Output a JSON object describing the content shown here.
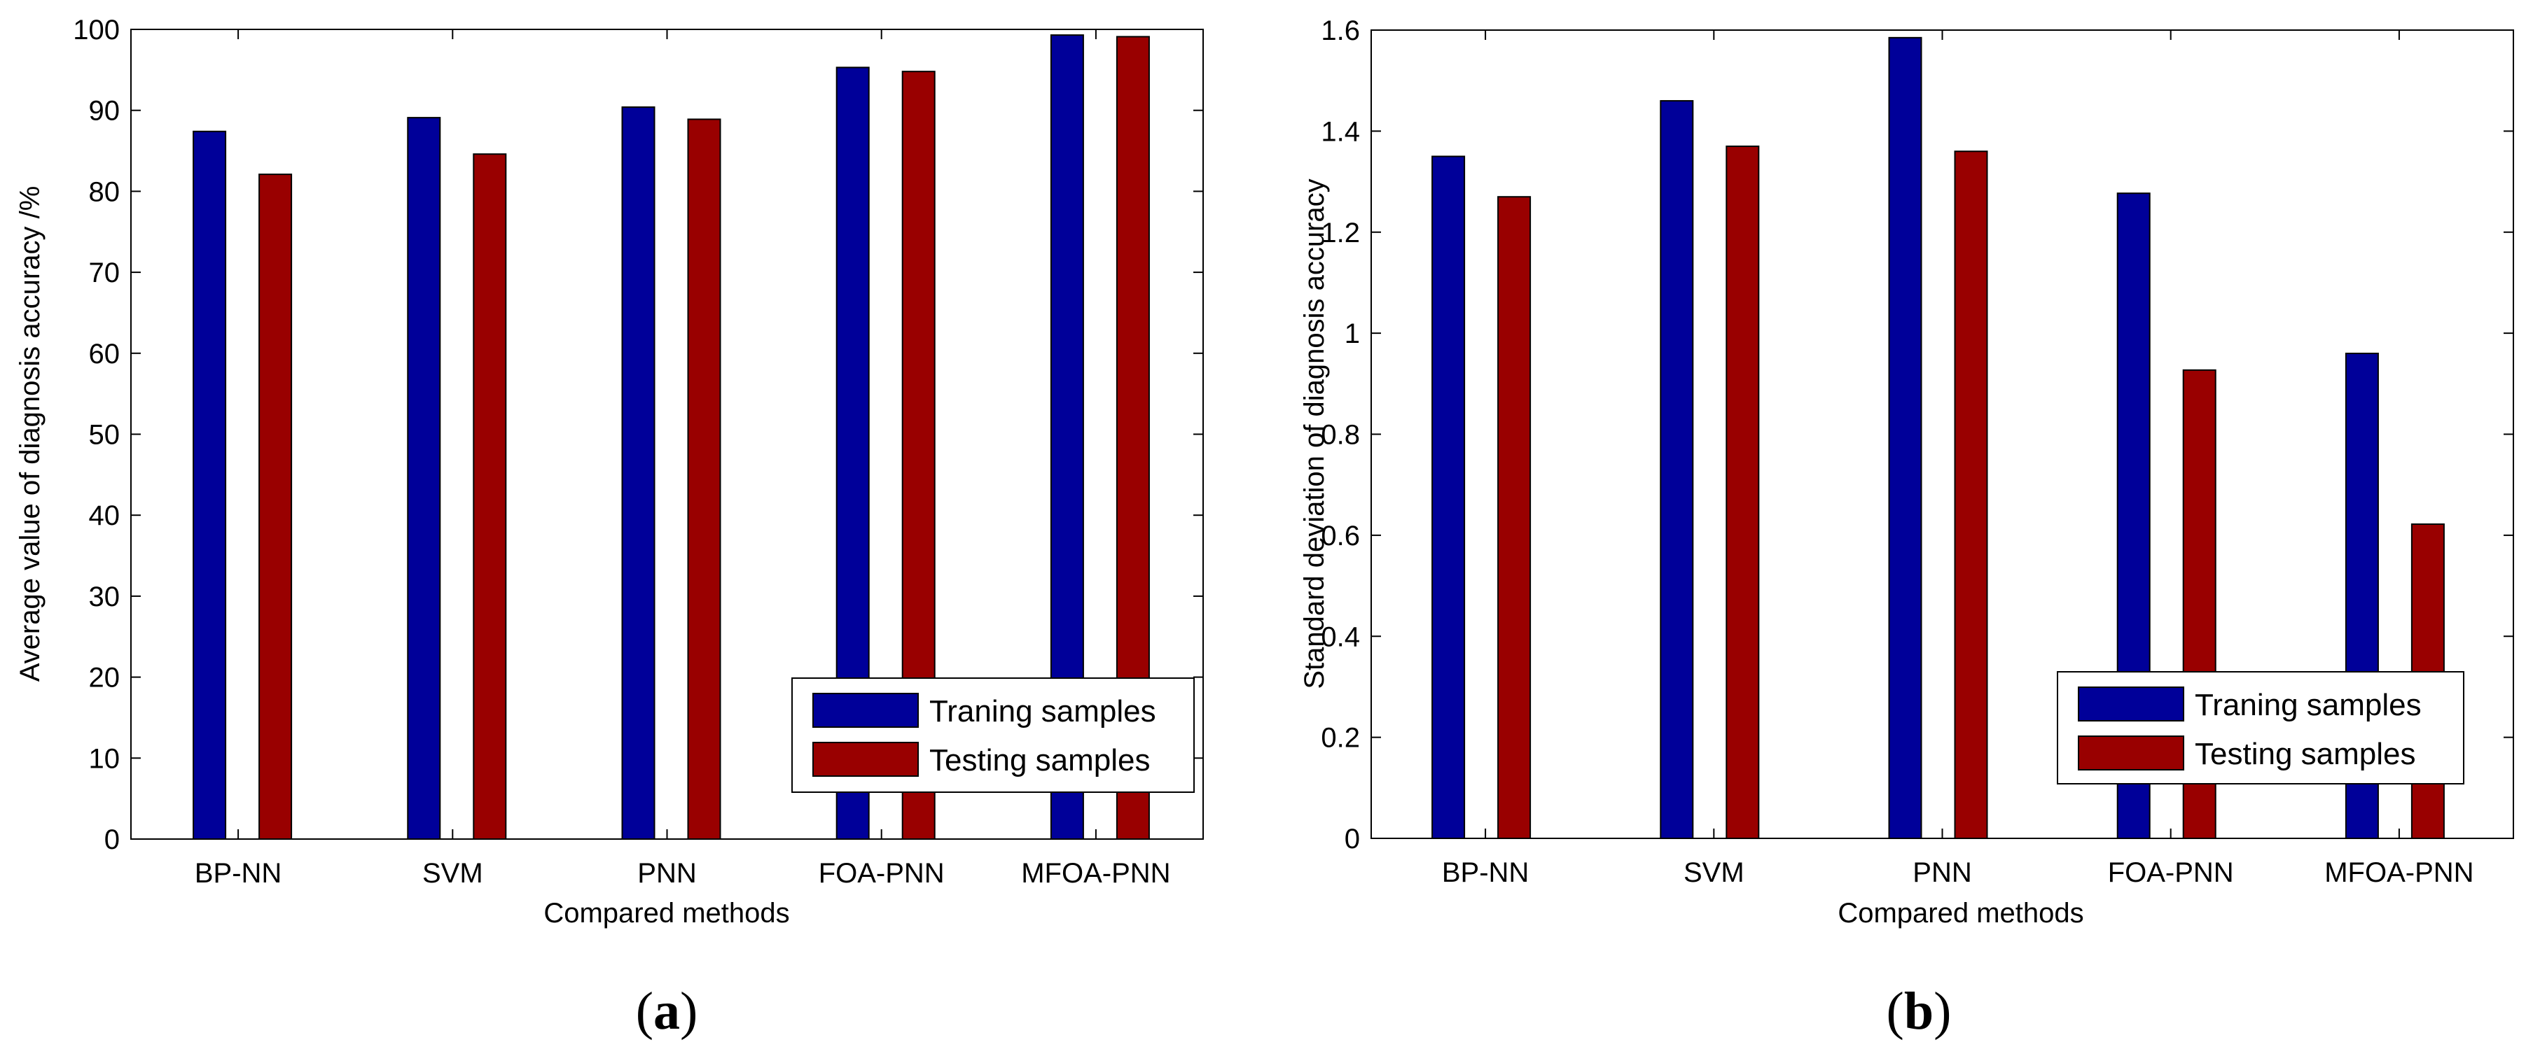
{
  "chart_data": [
    {
      "type": "bar",
      "panel_label": "(a)",
      "panel_letter": "a",
      "title": "",
      "xlabel": "Compared methods",
      "ylabel": "Average value of diagnosis accuracy /%",
      "categories": [
        "BP-NN",
        "SVM",
        "PNN",
        "FOA-PNN",
        "MFOA-PNN"
      ],
      "ylim": [
        0,
        100
      ],
      "yticks": [
        0,
        10,
        20,
        30,
        40,
        50,
        60,
        70,
        80,
        90,
        100
      ],
      "ytick_labels": [
        "0",
        "10",
        "20",
        "30",
        "40",
        "50",
        "60",
        "70",
        "80",
        "90",
        "100"
      ],
      "series": [
        {
          "name": "Traning samples",
          "color": "#000099",
          "values": [
            87.4,
            89.1,
            90.4,
            95.3,
            99.3
          ]
        },
        {
          "name": "Testing samples",
          "color": "#990000",
          "values": [
            82.1,
            84.6,
            88.9,
            94.8,
            99.1
          ]
        }
      ],
      "legend_position": "bottom-right",
      "grid": false
    },
    {
      "type": "bar",
      "panel_label": "(b)",
      "panel_letter": "b",
      "title": "",
      "xlabel": "Compared methods",
      "ylabel": "Standard deviation of diagnosis accuracy",
      "categories": [
        "BP-NN",
        "SVM",
        "PNN",
        "FOA-PNN",
        "MFOA-PNN"
      ],
      "ylim": [
        0,
        1.6
      ],
      "yticks": [
        0,
        0.2,
        0.4,
        0.6,
        0.8,
        1,
        1.2,
        1.4,
        1.6
      ],
      "ytick_labels": [
        "0",
        "0.2",
        "0.4",
        "0.6",
        "0.8",
        "1",
        "1.2",
        "1.4",
        "1.6"
      ],
      "series": [
        {
          "name": "Traning samples",
          "color": "#000099",
          "values": [
            1.35,
            1.46,
            1.585,
            1.277,
            0.96
          ]
        },
        {
          "name": "Testing samples",
          "color": "#990000",
          "values": [
            1.27,
            1.37,
            1.36,
            0.927,
            0.622
          ]
        }
      ],
      "legend_position": "bottom-right",
      "grid": false
    }
  ]
}
